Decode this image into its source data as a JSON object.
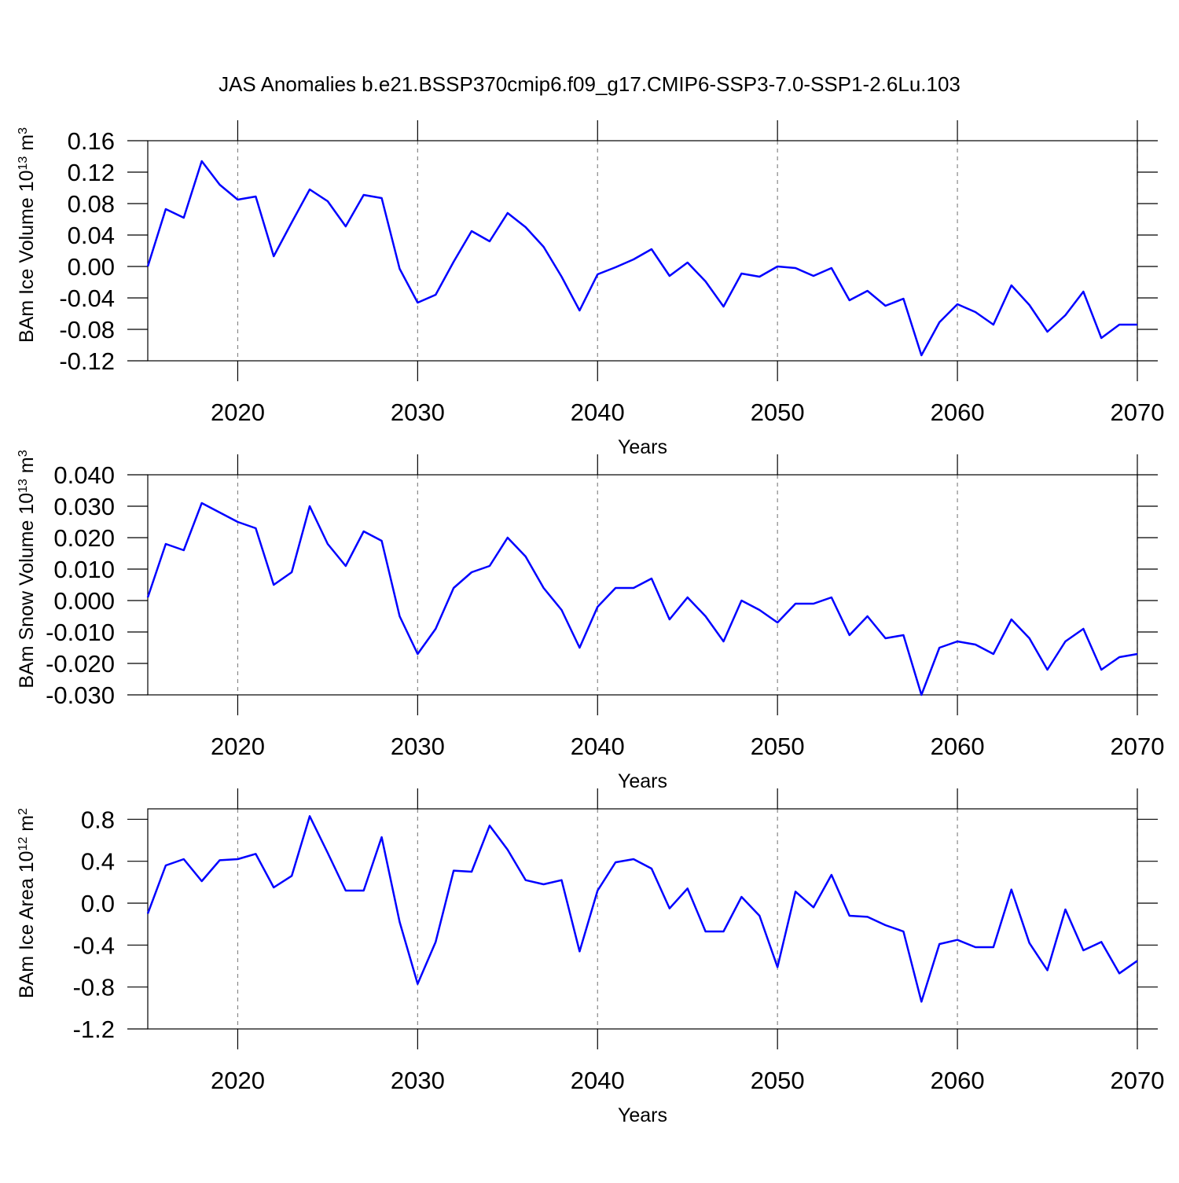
{
  "chart_data": [
    {
      "type": "line",
      "title": "JAS Anomalies b.e21.BSSP370cmip6.f09_g17.CMIP6-SSP3-7.0-SSP1-2.6Lu.103",
      "xlabel": "Years",
      "ylabel": {
        "text": "BAm Ice Volume 10",
        "exponent": "13",
        "unit": " m",
        "unit_exponent": "3"
      },
      "x": [
        2015,
        2016,
        2017,
        2018,
        2019,
        2020,
        2021,
        2022,
        2023,
        2024,
        2025,
        2026,
        2027,
        2028,
        2029,
        2030,
        2031,
        2032,
        2033,
        2034,
        2035,
        2036,
        2037,
        2038,
        2039,
        2040,
        2041,
        2042,
        2043,
        2044,
        2045,
        2046,
        2047,
        2048,
        2049,
        2050,
        2051,
        2052,
        2053,
        2054,
        2055,
        2056,
        2057,
        2058,
        2059,
        2060,
        2061,
        2062,
        2063,
        2064,
        2065,
        2066,
        2067,
        2068,
        2069,
        2070
      ],
      "series": [
        {
          "color": "#0000ff",
          "values": [
            0.0,
            0.073,
            0.062,
            0.134,
            0.104,
            0.085,
            0.089,
            0.013,
            0.056,
            0.098,
            0.083,
            0.051,
            0.091,
            0.087,
            -0.003,
            -0.046,
            -0.036,
            0.006,
            0.045,
            0.032,
            0.068,
            0.05,
            0.025,
            -0.013,
            -0.056,
            -0.01,
            -0.001,
            0.009,
            0.022,
            -0.012,
            0.005,
            -0.019,
            -0.051,
            -0.009,
            -0.013,
            0.0,
            -0.002,
            -0.012,
            -0.002,
            -0.043,
            -0.031,
            -0.05,
            -0.041,
            -0.113,
            -0.071,
            -0.048,
            -0.058,
            -0.074,
            -0.024,
            -0.049,
            -0.083,
            -0.062,
            -0.032,
            -0.091,
            -0.074,
            -0.074
          ]
        }
      ],
      "xlim": [
        2015,
        2070
      ],
      "xticks": [
        2020,
        2030,
        2040,
        2050,
        2060,
        2070
      ],
      "ylim": [
        -0.12,
        0.16
      ],
      "yticks": [
        0.16,
        0.12,
        0.08,
        0.04,
        {
          "value": 0,
          "label": "0.00"
        },
        -0.04,
        -0.08,
        -0.12
      ],
      "xgrid": true
    },
    {
      "type": "line",
      "xlabel": "Years",
      "ylabel": {
        "text": "BAm Snow Volume 10",
        "exponent": "13",
        "unit": " m",
        "unit_exponent": "3"
      },
      "x": [
        2015,
        2016,
        2017,
        2018,
        2019,
        2020,
        2021,
        2022,
        2023,
        2024,
        2025,
        2026,
        2027,
        2028,
        2029,
        2030,
        2031,
        2032,
        2033,
        2034,
        2035,
        2036,
        2037,
        2038,
        2039,
        2040,
        2041,
        2042,
        2043,
        2044,
        2045,
        2046,
        2047,
        2048,
        2049,
        2050,
        2051,
        2052,
        2053,
        2054,
        2055,
        2056,
        2057,
        2058,
        2059,
        2060,
        2061,
        2062,
        2063,
        2064,
        2065,
        2066,
        2067,
        2068,
        2069,
        2070
      ],
      "series": [
        {
          "color": "#0000ff",
          "values": [
            0.001,
            0.018,
            0.016,
            0.031,
            0.028,
            0.025,
            0.023,
            0.005,
            0.009,
            0.03,
            0.018,
            0.011,
            0.022,
            0.019,
            -0.005,
            -0.017,
            -0.009,
            0.004,
            0.009,
            0.011,
            0.02,
            0.014,
            0.004,
            -0.003,
            -0.015,
            -0.002,
            0.004,
            0.004,
            0.007,
            -0.006,
            0.001,
            -0.005,
            -0.013,
            0.0,
            -0.003,
            -0.007,
            -0.001,
            -0.001,
            0.001,
            -0.011,
            -0.005,
            -0.012,
            -0.011,
            -0.03,
            -0.015,
            -0.013,
            -0.014,
            -0.017,
            -0.006,
            -0.012,
            -0.022,
            -0.013,
            -0.009,
            -0.022,
            -0.018,
            -0.017
          ]
        }
      ],
      "xlim": [
        2015,
        2070
      ],
      "xticks": [
        2020,
        2030,
        2040,
        2050,
        2060,
        2070
      ],
      "ylim": [
        -0.03,
        0.04
      ],
      "yticks": [
        {
          "value": 0.04,
          "label": "0.040"
        },
        {
          "value": 0.03,
          "label": "0.030"
        },
        {
          "value": 0.02,
          "label": "0.020"
        },
        {
          "value": 0.01,
          "label": "0.010"
        },
        {
          "value": 0,
          "label": "0.000"
        },
        {
          "value": -0.01,
          "label": "-0.010"
        },
        {
          "value": -0.02,
          "label": "-0.020"
        },
        {
          "value": -0.03,
          "label": "-0.030"
        }
      ],
      "xgrid": true
    },
    {
      "type": "line",
      "xlabel": "Years",
      "ylabel": {
        "text": "BAm Ice Area 10",
        "exponent": "12",
        "unit": " m",
        "unit_exponent": "2"
      },
      "x": [
        2015,
        2016,
        2017,
        2018,
        2019,
        2020,
        2021,
        2022,
        2023,
        2024,
        2025,
        2026,
        2027,
        2028,
        2029,
        2030,
        2031,
        2032,
        2033,
        2034,
        2035,
        2036,
        2037,
        2038,
        2039,
        2040,
        2041,
        2042,
        2043,
        2044,
        2045,
        2046,
        2047,
        2048,
        2049,
        2050,
        2051,
        2052,
        2053,
        2054,
        2055,
        2056,
        2057,
        2058,
        2059,
        2060,
        2061,
        2062,
        2063,
        2064,
        2065,
        2066,
        2067,
        2068,
        2069,
        2070
      ],
      "series": [
        {
          "color": "#0000ff",
          "values": [
            -0.1,
            0.36,
            0.42,
            0.21,
            0.41,
            0.42,
            0.47,
            0.15,
            0.26,
            0.83,
            0.48,
            0.12,
            0.12,
            0.63,
            -0.18,
            -0.77,
            -0.37,
            0.31,
            0.3,
            0.74,
            0.51,
            0.22,
            0.18,
            0.22,
            -0.46,
            0.12,
            0.39,
            0.42,
            0.33,
            -0.05,
            0.14,
            -0.27,
            -0.27,
            0.06,
            -0.12,
            -0.61,
            0.11,
            -0.04,
            0.27,
            -0.12,
            -0.13,
            -0.21,
            -0.27,
            -0.94,
            -0.39,
            -0.35,
            -0.42,
            -0.42,
            0.13,
            -0.38,
            -0.64,
            -0.06,
            -0.45,
            -0.37,
            -0.67,
            -0.55
          ]
        }
      ],
      "xlim": [
        2015,
        2070
      ],
      "xticks": [
        2020,
        2030,
        2040,
        2050,
        2060,
        2070
      ],
      "ylim": [
        -1.2,
        0.9
      ],
      "yticks": [
        0.8,
        0.4,
        {
          "value": 0,
          "label": "0.0"
        },
        -0.4,
        -0.8,
        -1.2
      ],
      "xgrid": true
    }
  ]
}
